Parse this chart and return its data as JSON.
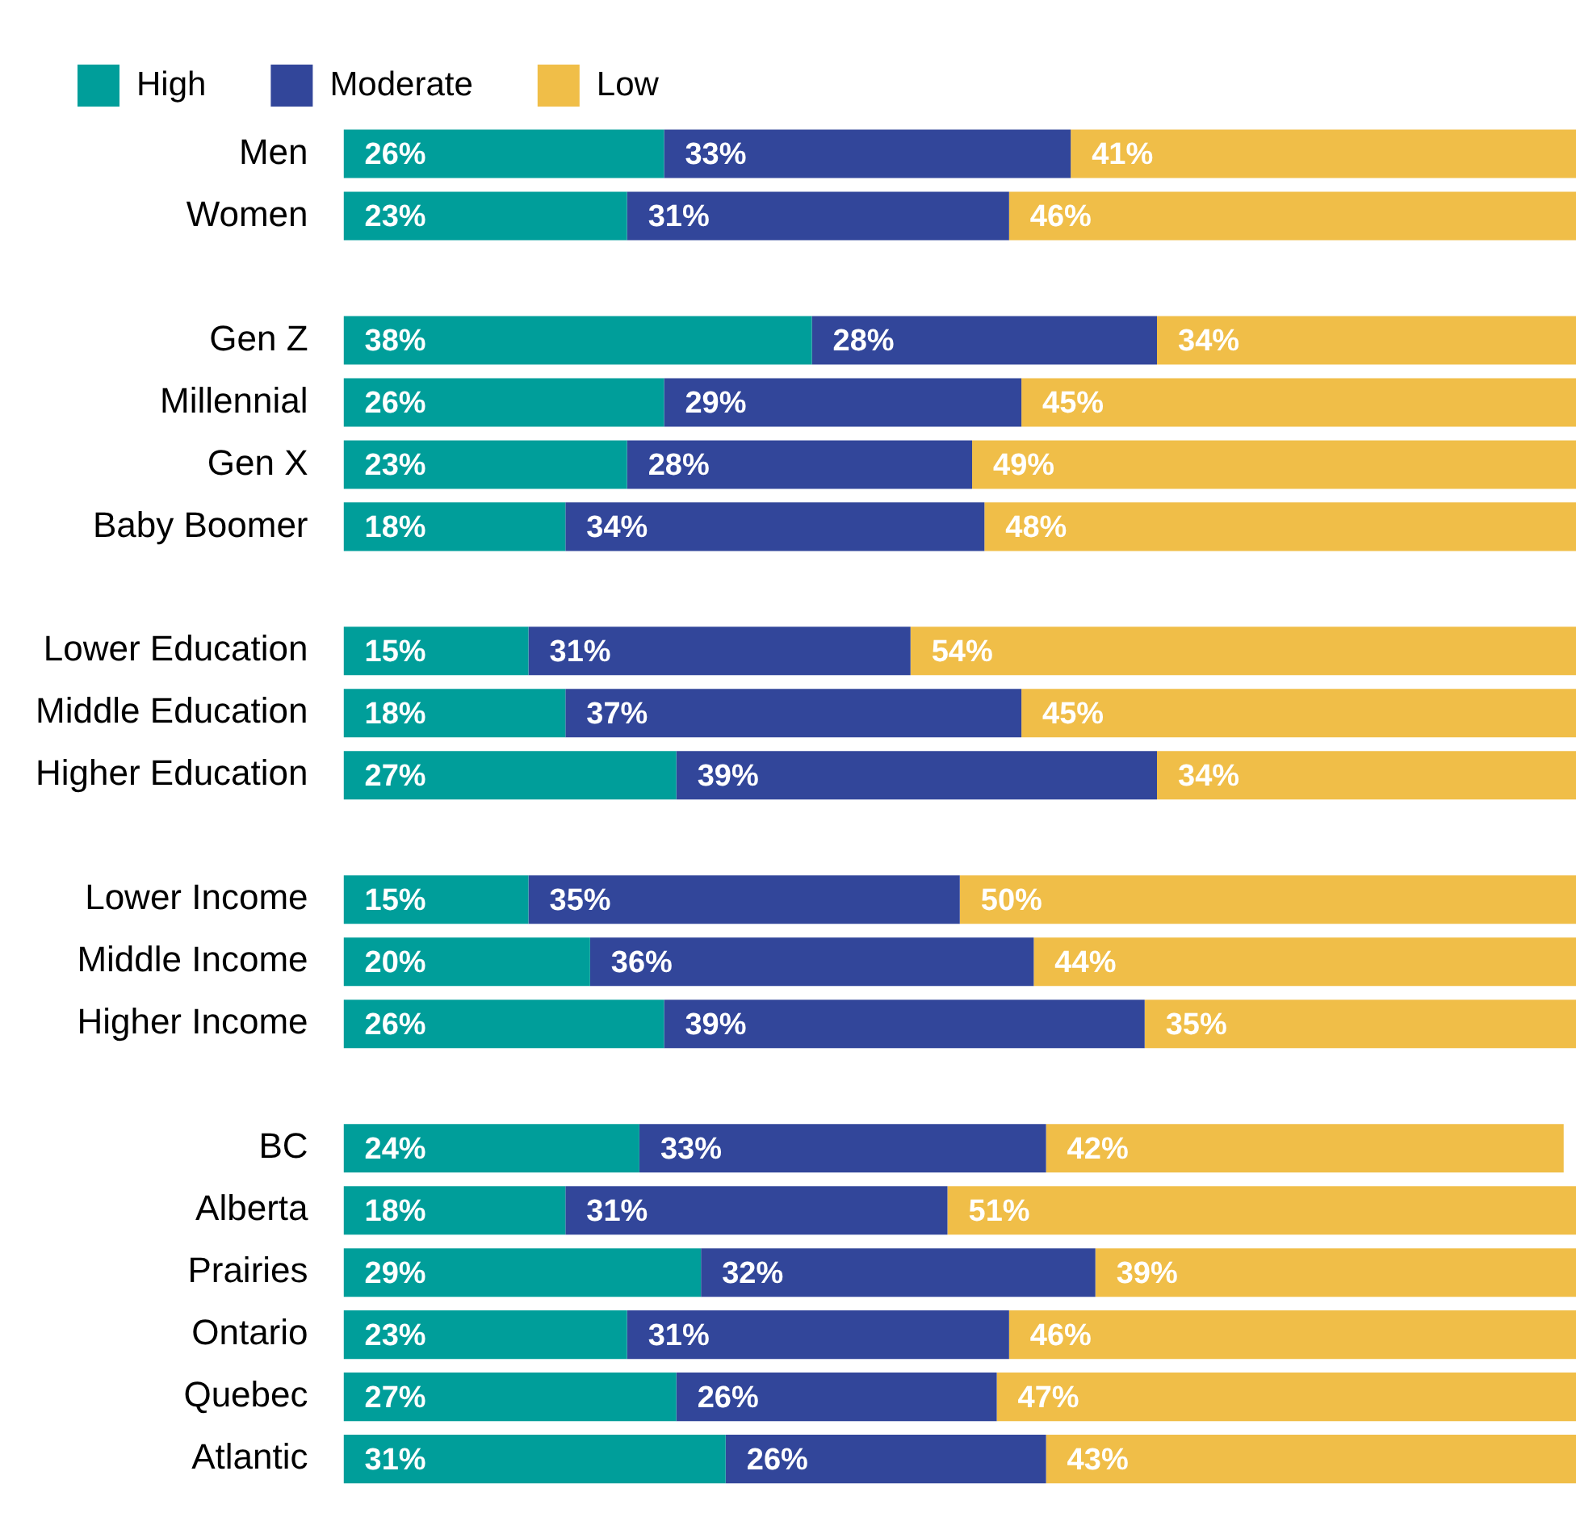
{
  "chart_data": {
    "type": "bar",
    "orientation": "horizontal",
    "stacked": true,
    "legend": "top left",
    "tick_labels": "y",
    "xlim": [
      0,
      100
    ],
    "categories": [
      "Men",
      "Women",
      null,
      "Gen Z",
      "Millennial",
      "Gen X",
      "Baby Boomer",
      null,
      "Lower Education",
      "Middle Education",
      "Higher Education",
      null,
      "Lower Income",
      "Middle Income",
      "Higher Income",
      null,
      "BC",
      "Alberta",
      "Prairies",
      "Ontario",
      "Quebec",
      "Atlantic"
    ],
    "series": [
      {
        "name": "High",
        "color": "#009e9a",
        "values": [
          26,
          23,
          null,
          38,
          26,
          23,
          18,
          null,
          15,
          18,
          27,
          null,
          15,
          20,
          26,
          null,
          24,
          18,
          29,
          23,
          27,
          31
        ],
        "value_labels": [
          "26%",
          "23%",
          null,
          "38%",
          "26%",
          "23%",
          "18%",
          null,
          "15%",
          "18%",
          "27%",
          null,
          "15%",
          "20%",
          "26%",
          null,
          "24%",
          "18%",
          "29%",
          "23%",
          "27%",
          "31%"
        ]
      },
      {
        "name": "Moderate",
        "color": "#32469a",
        "values": [
          33,
          31,
          null,
          28,
          29,
          28,
          34,
          null,
          31,
          37,
          39,
          null,
          35,
          36,
          39,
          null,
          33,
          31,
          32,
          31,
          26,
          26
        ],
        "value_labels": [
          "33%",
          "31%",
          null,
          "28%",
          "29%",
          "28%",
          "34%",
          null,
          "31%",
          "37%",
          "39%",
          null,
          "35%",
          "36%",
          "39%",
          null,
          "33%",
          "31%",
          "32%",
          "31%",
          "26%",
          "26%"
        ]
      },
      {
        "name": "Low",
        "color": "#f0be48",
        "values": [
          41,
          46,
          null,
          34,
          45,
          49,
          48,
          null,
          54,
          45,
          34,
          null,
          50,
          44,
          35,
          null,
          42,
          51,
          39,
          46,
          47,
          43
        ],
        "value_labels": [
          "41%",
          "46%",
          null,
          "34%",
          "45%",
          "49%",
          "48%",
          null,
          "54%",
          "45%",
          "34%",
          null,
          "50%",
          "44%",
          "35%",
          null,
          "42%",
          "51%",
          "39%",
          "46%",
          "47%",
          "43%"
        ]
      }
    ]
  }
}
